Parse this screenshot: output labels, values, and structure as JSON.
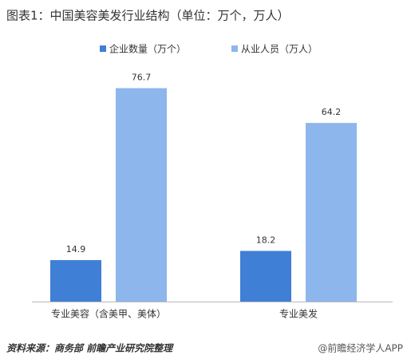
{
  "chart_data": {
    "type": "bar",
    "title": "图表1：中国美容美发行业结构（单位：万个，万人）",
    "categories": [
      "专业美容（含美甲、美体）",
      "专业美发"
    ],
    "series": [
      {
        "name": "企业数量（万个）",
        "color": "#3f7fd6",
        "values": [
          14.9,
          18.2
        ]
      },
      {
        "name": "从业人员（万人）",
        "color": "#8db6ec",
        "values": [
          76.7,
          64.2
        ]
      }
    ],
    "ylim": [
      0,
      80
    ],
    "source": "资料来源：商务部 前瞻产业研究院整理",
    "watermark": "@前瞻经济学人APP"
  }
}
